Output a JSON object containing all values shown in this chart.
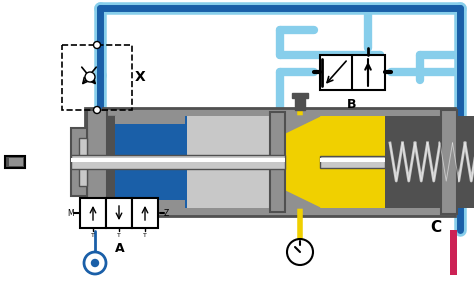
{
  "bg_color": "#ffffff",
  "blue_dark": "#1a5fa8",
  "blue_light": "#87ceeb",
  "gray_body": "#909090",
  "gray_dark": "#505050",
  "gray_light": "#c8c8c8",
  "gray_mid": "#b0b0b0",
  "yellow": "#f0d000",
  "pink_red": "#cc2255",
  "white": "#ffffff",
  "black": "#000000",
  "label_A": "A",
  "label_B": "B",
  "label_C": "C",
  "label_X": "X"
}
